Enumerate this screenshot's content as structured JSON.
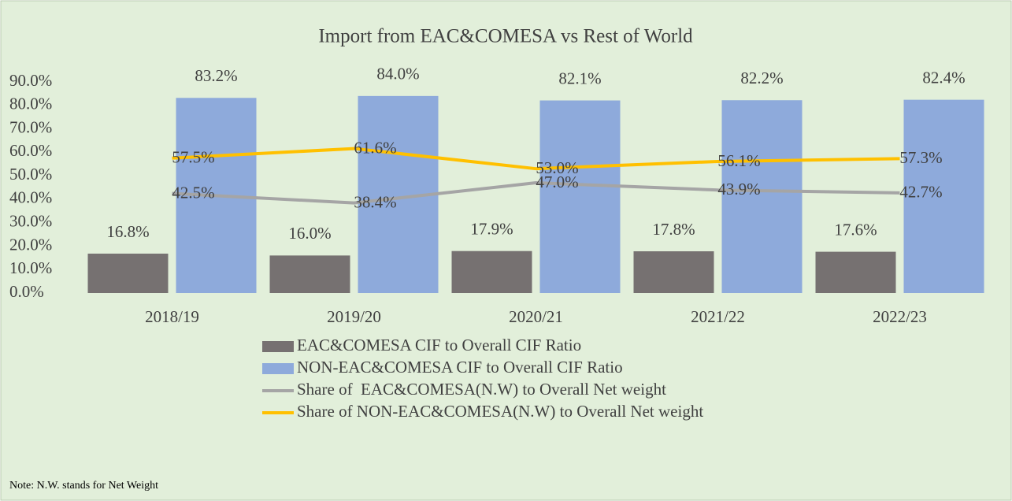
{
  "chart_data": {
    "type": "bar",
    "title": "Import from EAC&COMESA vs Rest of World",
    "categories": [
      "2018/19",
      "2019/20",
      "2020/21",
      "2021/22",
      "2022/23"
    ],
    "series": [
      {
        "name": "EAC&COMESA CIF to Overall CIF Ratio",
        "type": "bar",
        "color": "#767171",
        "values": [
          16.8,
          16.0,
          17.9,
          17.8,
          17.6
        ],
        "value_labels": [
          "16.8%",
          "16.0%",
          "17.9%",
          "17.8%",
          "17.6%"
        ]
      },
      {
        "name": "NON-EAC&COMESA CIF to Overall CIF Ratio",
        "type": "bar",
        "color": "#8eaadb",
        "values": [
          83.2,
          84.0,
          82.1,
          82.2,
          82.4
        ],
        "value_labels": [
          "83.2%",
          "84.0%",
          "82.1%",
          "82.2%",
          "82.4%"
        ]
      },
      {
        "name": "Share of  EAC&COMESA(N.W) to Overall Net weight",
        "type": "line",
        "color": "#a5a5a5",
        "values": [
          42.5,
          38.4,
          47.0,
          43.9,
          42.7
        ],
        "value_labels": [
          "42.5%",
          "38.4%",
          "47.0%",
          "43.9%",
          "42.7%"
        ]
      },
      {
        "name": "Share of NON-EAC&COMESA(N.W) to Overall Net weight",
        "type": "line",
        "color": "#ffc000",
        "values": [
          57.5,
          61.6,
          53.0,
          56.1,
          57.3
        ],
        "value_labels": [
          "57.5%",
          "61.6%",
          "53.0%",
          "56.1%",
          "57.3%"
        ]
      }
    ],
    "ylim": [
      0,
      90
    ],
    "yticks": [
      {
        "value": 0,
        "label": "0.0%"
      },
      {
        "value": 10,
        "label": "10.0%"
      },
      {
        "value": 20,
        "label": "20.0%"
      },
      {
        "value": 30,
        "label": "30.0%"
      },
      {
        "value": 40,
        "label": "40.0%"
      },
      {
        "value": 50,
        "label": "50.0%"
      },
      {
        "value": 60,
        "label": "60.0%"
      },
      {
        "value": 70,
        "label": "70.0%"
      },
      {
        "value": 80,
        "label": "80.0%"
      },
      {
        "value": 90,
        "label": "90.0%"
      }
    ],
    "grid": false,
    "legend": "bottom",
    "note": "Note: N.W. stands for Net Weight"
  }
}
